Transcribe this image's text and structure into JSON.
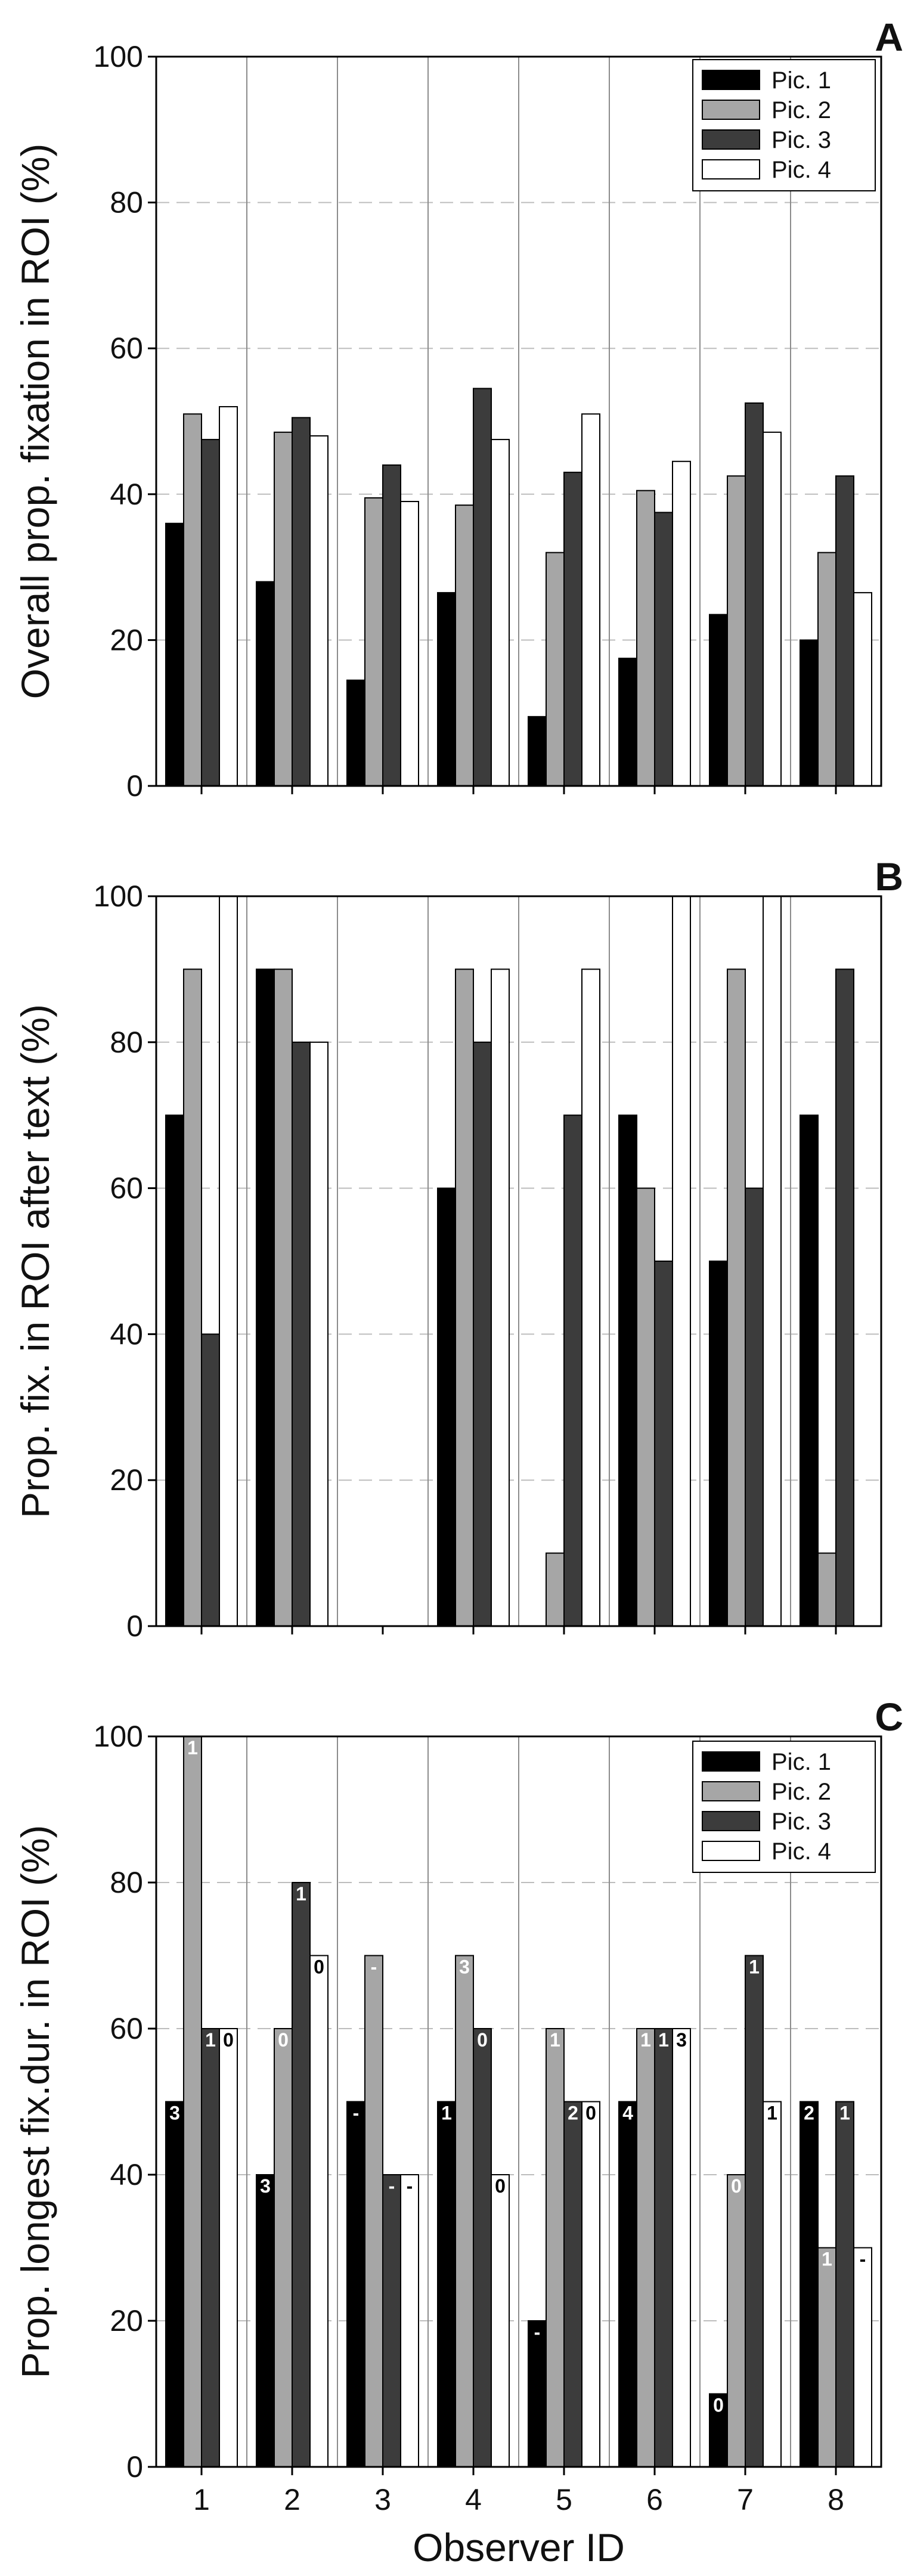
{
  "chart_data": [
    {
      "type": "bar",
      "panel": "A",
      "ylabel": "Overall prop. fixation in ROI (%)",
      "xlabel": "",
      "ylim": [
        0,
        100
      ],
      "yticks": [
        0,
        20,
        40,
        60,
        80,
        100
      ],
      "categories": [
        "1",
        "2",
        "3",
        "4",
        "5",
        "6",
        "7",
        "8"
      ],
      "legend": "top-right",
      "grid": "dashed horizontal at 20-unit ticks",
      "series": [
        {
          "name": "Pic. 1",
          "color": "#000000",
          "values": [
            36,
            28,
            14.5,
            26.5,
            9.5,
            17.5,
            23.5,
            20
          ]
        },
        {
          "name": "Pic. 2",
          "color": "#a6a6a6",
          "values": [
            51,
            48.5,
            39.5,
            38.5,
            32,
            40.5,
            42.5,
            32
          ]
        },
        {
          "name": "Pic. 3",
          "color": "#3c3c3c",
          "values": [
            47.5,
            50.5,
            44,
            54.5,
            43,
            37.5,
            52.5,
            42.5
          ]
        },
        {
          "name": "Pic. 4",
          "color": "#ffffff",
          "values": [
            52,
            48,
            39,
            47.5,
            51,
            44.5,
            48.5,
            26.5
          ]
        }
      ]
    },
    {
      "type": "bar",
      "panel": "B",
      "ylabel": "Prop. fix. in ROI after text (%)",
      "xlabel": "",
      "ylim": [
        0,
        100
      ],
      "yticks": [
        0,
        20,
        40,
        60,
        80,
        100
      ],
      "categories": [
        "1",
        "2",
        "3",
        "4",
        "5",
        "6",
        "7",
        "8"
      ],
      "series": [
        {
          "name": "Pic. 1",
          "color": "#000000",
          "values": [
            70,
            90,
            0,
            60,
            0,
            70,
            50,
            70
          ]
        },
        {
          "name": "Pic. 2",
          "color": "#a6a6a6",
          "values": [
            90,
            90,
            0,
            90,
            10,
            60,
            90,
            10
          ]
        },
        {
          "name": "Pic. 3",
          "color": "#3c3c3c",
          "values": [
            40,
            80,
            0,
            80,
            70,
            50,
            60,
            90
          ]
        },
        {
          "name": "Pic. 4",
          "color": "#ffffff",
          "values": [
            100,
            80,
            0,
            90,
            90,
            100,
            100,
            null
          ]
        }
      ]
    },
    {
      "type": "bar",
      "panel": "C",
      "ylabel": "Prop. longest fix.dur. in ROI (%)",
      "xlabel": "Observer ID",
      "ylim": [
        0,
        100
      ],
      "yticks": [
        0,
        20,
        40,
        60,
        80,
        100
      ],
      "categories": [
        "1",
        "2",
        "3",
        "4",
        "5",
        "6",
        "7",
        "8"
      ],
      "legend": "top-right",
      "series": [
        {
          "name": "Pic. 1",
          "color": "#000000",
          "values": [
            50,
            40,
            50,
            50,
            20,
            50,
            10,
            50
          ],
          "labels": [
            "3",
            "3",
            "-",
            "1",
            "-",
            "4",
            "0",
            "2"
          ]
        },
        {
          "name": "Pic. 2",
          "color": "#a6a6a6",
          "values": [
            100,
            60,
            70,
            70,
            60,
            60,
            40,
            30
          ],
          "labels": [
            "1",
            "0",
            "-",
            "3",
            "1",
            "1",
            "0",
            "1"
          ]
        },
        {
          "name": "Pic. 3",
          "color": "#3c3c3c",
          "values": [
            60,
            80,
            40,
            60,
            50,
            60,
            70,
            50
          ],
          "labels": [
            "1",
            "1",
            "-",
            "0",
            "2",
            "1",
            "1",
            "1"
          ]
        },
        {
          "name": "Pic. 4",
          "color": "#ffffff",
          "values": [
            60,
            70,
            40,
            40,
            50,
            60,
            50,
            30
          ],
          "labels": [
            "0",
            "0",
            "-",
            "0",
            "0",
            "3",
            "1",
            "-"
          ]
        }
      ]
    }
  ]
}
